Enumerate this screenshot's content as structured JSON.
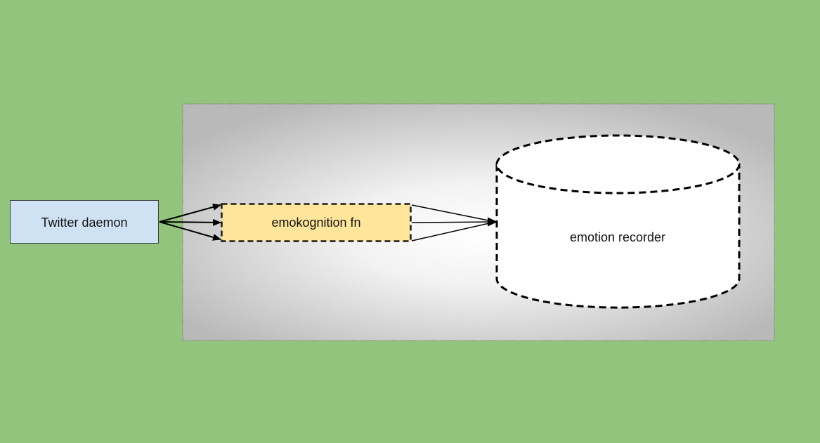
{
  "diagram": {
    "nodes": {
      "twitter_daemon": {
        "label": "Twitter daemon",
        "fill": "#cfe2f3",
        "stroke": "#3d3d3d"
      },
      "emokognition_fn": {
        "label": "emokognition fn",
        "fill": "#ffe599",
        "stroke": "#1a1a1a",
        "border": "dashed"
      },
      "emotion_recorder": {
        "label": "emotion recorder",
        "fill": "#ffffff",
        "stroke": "#1a1a1a",
        "border": "dashed",
        "shape": "cylinder"
      }
    },
    "group": {
      "fill": "radial gradient white to grey",
      "border": "dotted"
    },
    "edges": [
      {
        "from": "twitter_daemon",
        "to": "emokognition_fn",
        "count": 3
      },
      {
        "from": "emokognition_fn",
        "to": "emotion_recorder",
        "count": 3
      }
    ],
    "colors": {
      "background": "#93c47d",
      "group_center": "#ffffff",
      "group_edge": "#b7b7b7",
      "edge": "#000000"
    }
  }
}
